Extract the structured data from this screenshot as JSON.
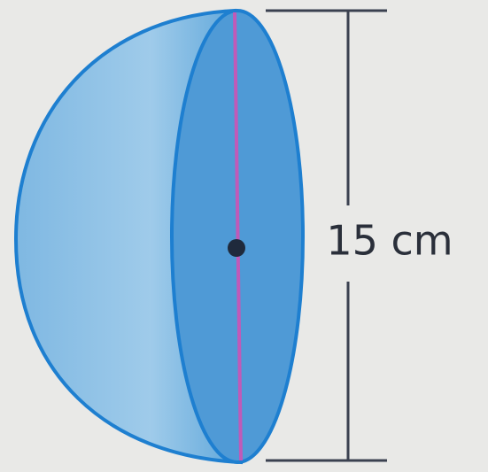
{
  "diagram": {
    "dimension_label": "15 cm"
  }
}
